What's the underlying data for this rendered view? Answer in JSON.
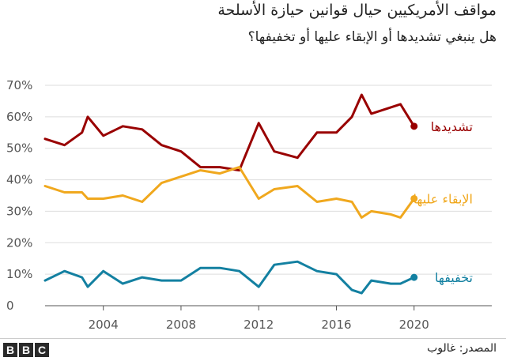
{
  "chart_data": {
    "type": "line",
    "title": "مواقف الأمريكيين حيال قوانين حيازة الأسلحة",
    "subtitle": "هل ينبغي تشديدها أو الإبقاء عليها أو تخفيفها؟",
    "xlabel": "",
    "ylabel": "",
    "xlim": [
      2001,
      2024
    ],
    "ylim": [
      0,
      70
    ],
    "x_ticks": [
      2004,
      2008,
      2012,
      2016,
      2020
    ],
    "x_tick_labels": [
      "2004",
      "2008",
      "2012",
      "2016",
      "2020"
    ],
    "y_ticks": [
      0,
      10,
      20,
      30,
      40,
      50,
      60,
      70
    ],
    "y_tick_labels": [
      "0",
      "10%",
      "20%",
      "30%",
      "40%",
      "50%",
      "60%",
      "70%"
    ],
    "grid": true,
    "series": [
      {
        "name": "تشديدها",
        "color": "#990000",
        "x": [
          2001,
          2002,
          2002.9,
          2003.2,
          2004,
          2005,
          2006,
          2007,
          2008,
          2009,
          2010,
          2011,
          2012,
          2012.8,
          2014,
          2015,
          2016,
          2016.8,
          2017.3,
          2017.8,
          2018.8,
          2019.3,
          2020
        ],
        "values": [
          53,
          51,
          55,
          60,
          54,
          57,
          56,
          51,
          49,
          44,
          44,
          43,
          58,
          49,
          47,
          55,
          55,
          60,
          67,
          61,
          63,
          64,
          57
        ]
      },
      {
        "name": "الإبقاء عليها",
        "color": "#f0a81e",
        "x": [
          2001,
          2002,
          2002.9,
          2003.2,
          2004,
          2005,
          2006,
          2007,
          2008,
          2009,
          2010,
          2011,
          2012,
          2012.8,
          2014,
          2015,
          2016,
          2016.8,
          2017.3,
          2017.8,
          2018.8,
          2019.3,
          2020
        ],
        "values": [
          38,
          36,
          36,
          34,
          34,
          35,
          33,
          39,
          41,
          43,
          42,
          44,
          34,
          37,
          38,
          33,
          34,
          33,
          28,
          30,
          29,
          28,
          34
        ]
      },
      {
        "name": "تخفيفها",
        "color": "#1380a1",
        "x": [
          2001,
          2002,
          2002.9,
          2003.2,
          2004,
          2005,
          2006,
          2007,
          2008,
          2009,
          2010,
          2011,
          2012,
          2012.8,
          2014,
          2015,
          2016,
          2016.8,
          2017.3,
          2017.8,
          2018.8,
          2019.3,
          2020
        ],
        "values": [
          8,
          11,
          9,
          6,
          11,
          7,
          9,
          8,
          8,
          12,
          12,
          11,
          6,
          13,
          14,
          11,
          10,
          5,
          4,
          8,
          7,
          7,
          9
        ]
      }
    ]
  },
  "footer": {
    "source": "المصدر: غالوب",
    "logo_letters": [
      "B",
      "B",
      "C"
    ]
  }
}
